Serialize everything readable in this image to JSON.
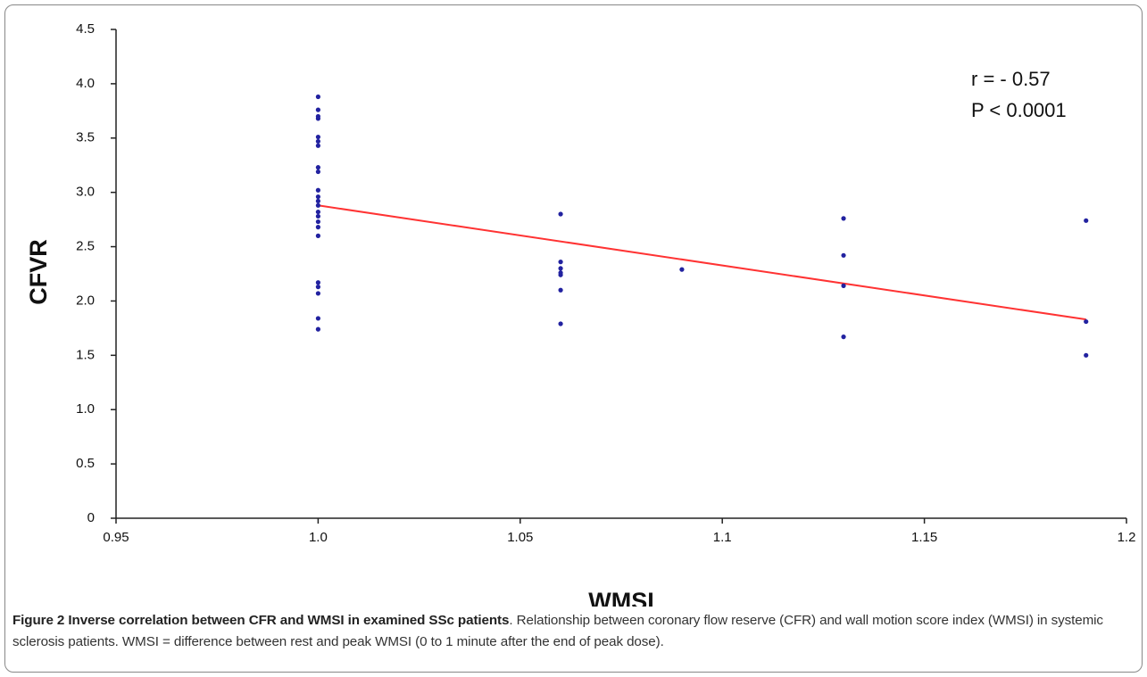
{
  "chart_data": {
    "type": "scatter",
    "x_label": "WMSI",
    "y_label": "CFVR",
    "annotations": [
      "r = - 0.57",
      "P < 0.0001"
    ],
    "x": [
      1.0,
      1.0,
      1.0,
      1.0,
      1.0,
      1.0,
      1.0,
      1.0,
      1.0,
      1.0,
      1.0,
      1.0,
      1.0,
      1.0,
      1.0,
      1.0,
      1.0,
      1.0,
      1.0,
      1.0,
      1.0,
      1.0,
      1.0,
      1.06,
      1.06,
      1.06,
      1.06,
      1.06,
      1.06,
      1.06,
      1.09,
      1.13,
      1.13,
      1.13,
      1.13,
      1.19,
      1.19,
      1.19
    ],
    "values": [
      3.88,
      3.76,
      3.7,
      3.68,
      3.51,
      3.47,
      3.43,
      3.23,
      3.19,
      3.02,
      2.96,
      2.92,
      2.88,
      2.82,
      2.78,
      2.73,
      2.68,
      2.6,
      2.17,
      2.13,
      2.07,
      1.84,
      1.74,
      2.8,
      2.36,
      2.3,
      2.26,
      2.24,
      2.1,
      1.79,
      2.29,
      2.76,
      2.42,
      2.14,
      1.67,
      2.74,
      1.81,
      1.5
    ],
    "color": "#2222a0",
    "fit": {
      "x": [
        1.0,
        1.19
      ],
      "values": [
        2.88,
        1.83
      ],
      "color": "#ff3333"
    },
    "xlim": [
      0.95,
      1.2
    ],
    "xticks": [
      0.95,
      {
        "value": 1,
        "label": "1.0"
      },
      1.05,
      1.1,
      1.15,
      1.2
    ],
    "ylim": [
      0,
      4.5
    ],
    "yticks": [
      0,
      0.5,
      {
        "value": 1,
        "label": "1.0"
      },
      1.5,
      {
        "value": 2,
        "label": "2.0"
      },
      2.5,
      {
        "value": 3,
        "label": "3.0"
      },
      3.5,
      {
        "value": 4,
        "label": "4.0"
      },
      4.5
    ]
  },
  "caption": {
    "title": "Figure 2 Inverse correlation between CFR and WMSI in examined SSc patients",
    "text": ". Relationship between coronary flow reserve (CFR) and wall motion score index (WMSI) in systemic sclerosis patients. WMSI = difference between rest and peak WMSI (0 to 1 minute after the end of peak dose)."
  }
}
